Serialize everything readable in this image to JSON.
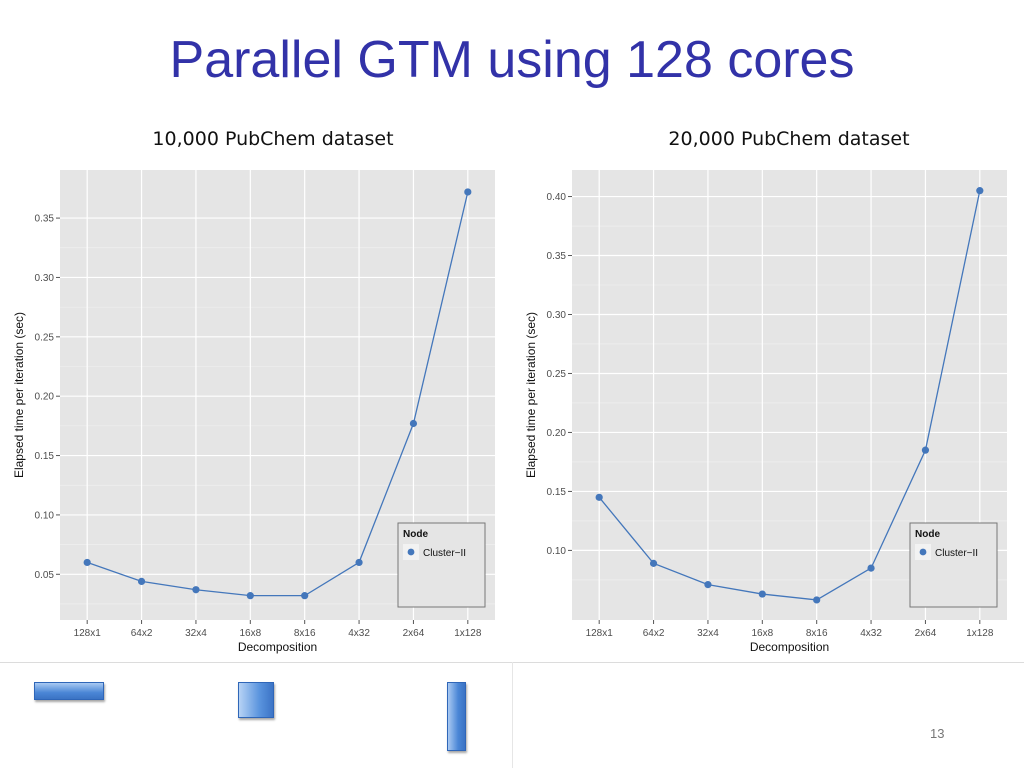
{
  "slide": {
    "title": "Parallel GTM using 128 cores",
    "page_number": "13"
  },
  "colors": {
    "title": "#3232a8",
    "panel_background": "#e5e5e5",
    "grid": "#ffffff",
    "series": "#4477bb"
  },
  "chart_data": [
    {
      "type": "line",
      "title": "10,000 PubChem dataset",
      "xlabel": "Decomposition",
      "ylabel": "Elapsed time per iteration (sec)",
      "categories": [
        "128x1",
        "64x2",
        "32x4",
        "16x8",
        "8x16",
        "4x32",
        "2x64",
        "1x128"
      ],
      "series": [
        {
          "name": "Cluster−II",
          "values": [
            0.06,
            0.044,
            0.037,
            0.032,
            0.032,
            0.06,
            0.177,
            0.372
          ]
        }
      ],
      "yticks": [
        0.05,
        0.1,
        0.15,
        0.2,
        0.25,
        0.3,
        0.35
      ],
      "ytick_labels": [
        "0.05",
        "0.10",
        "0.15",
        "0.20",
        "0.25",
        "0.30",
        "0.35"
      ],
      "ylim": [
        0.0115,
        0.3905
      ],
      "grid": true,
      "markers": true,
      "legend": {
        "title": "Node",
        "position": "bottom-right"
      }
    },
    {
      "type": "line",
      "title": "20,000 PubChem dataset",
      "xlabel": "Decomposition",
      "ylabel": "Elapsed time per iteration (sec)",
      "categories": [
        "128x1",
        "64x2",
        "32x4",
        "16x8",
        "8x16",
        "4x32",
        "2x64",
        "1x128"
      ],
      "series": [
        {
          "name": "Cluster−II",
          "values": [
            0.145,
            0.089,
            0.071,
            0.063,
            0.058,
            0.085,
            0.185,
            0.405
          ]
        }
      ],
      "yticks": [
        0.1,
        0.15,
        0.2,
        0.25,
        0.3,
        0.35,
        0.4
      ],
      "ytick_labels": [
        "0.10",
        "0.15",
        "0.20",
        "0.25",
        "0.30",
        "0.35",
        "0.40"
      ],
      "ylim": [
        0.041,
        0.4225
      ],
      "grid": true,
      "markers": true,
      "legend": {
        "title": "Node",
        "position": "bottom-right"
      }
    }
  ]
}
